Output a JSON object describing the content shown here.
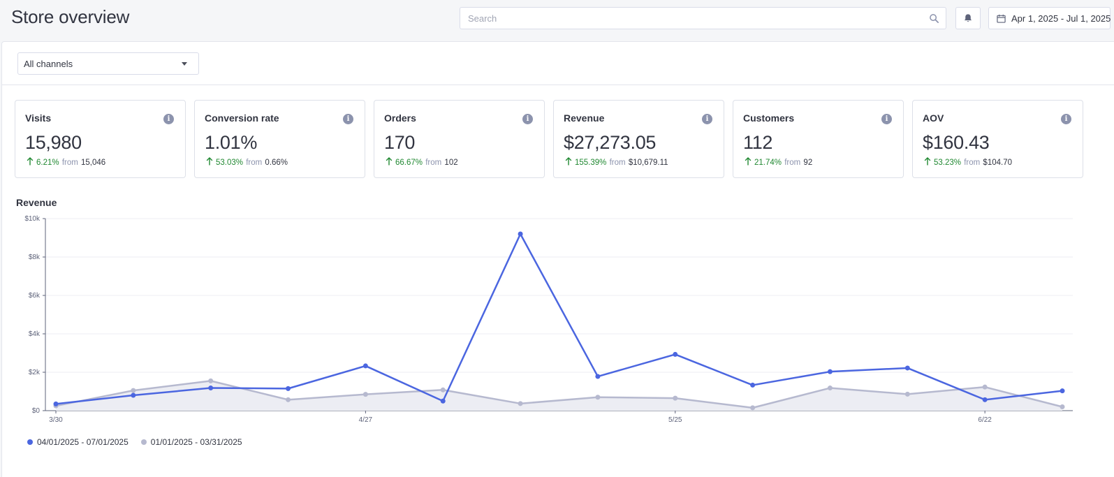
{
  "header": {
    "title": "Store overview",
    "search_placeholder": "Search",
    "date_range": "Apr 1, 2025 - Jul 1, 2025"
  },
  "filter": {
    "channel": "All channels"
  },
  "cards": [
    {
      "label": "Visits",
      "value": "15,980",
      "delta": "6.21%",
      "from_label": "from",
      "previous": "15,046"
    },
    {
      "label": "Conversion rate",
      "value": "1.01%",
      "delta": "53.03%",
      "from_label": "from",
      "previous": "0.66%"
    },
    {
      "label": "Orders",
      "value": "170",
      "delta": "66.67%",
      "from_label": "from",
      "previous": "102"
    },
    {
      "label": "Revenue",
      "value": "$27,273.05",
      "delta": "155.39%",
      "from_label": "from",
      "previous": "$10,679.11"
    },
    {
      "label": "Customers",
      "value": "112",
      "delta": "21.74%",
      "from_label": "from",
      "previous": "92"
    },
    {
      "label": "AOV",
      "value": "$160.43",
      "delta": "53.23%",
      "from_label": "from",
      "previous": "$104.70"
    }
  ],
  "colors": {
    "current": "#4b66e0",
    "previous": "#b6b9cf",
    "previous_fill": "#ecedf3",
    "delta_up": "#208831"
  },
  "chart_data": {
    "type": "line",
    "title": "Revenue",
    "ylim": [
      0,
      10000
    ],
    "yticks": [
      0,
      2000,
      4000,
      6000,
      8000,
      10000
    ],
    "ytick_labels": [
      "$0",
      "$2k",
      "$4k",
      "$6k",
      "$8k",
      "$10k"
    ],
    "xtick_labels": [
      "3/30",
      "4/27",
      "5/25",
      "6/22"
    ],
    "xtick_indices": [
      0,
      4,
      8,
      12
    ],
    "grid": true,
    "legend_position": "bottom-left",
    "series": [
      {
        "name": "04/01/2025 - 07/01/2025",
        "values": [
          350,
          800,
          1180,
          1150,
          2330,
          500,
          9200,
          1780,
          2930,
          1330,
          2030,
          2220,
          570,
          1030
        ]
      },
      {
        "name": "01/01/2025 - 03/31/2025",
        "values": [
          250,
          1050,
          1550,
          570,
          850,
          1080,
          370,
          700,
          650,
          150,
          1180,
          860,
          1230,
          200
        ]
      }
    ]
  }
}
